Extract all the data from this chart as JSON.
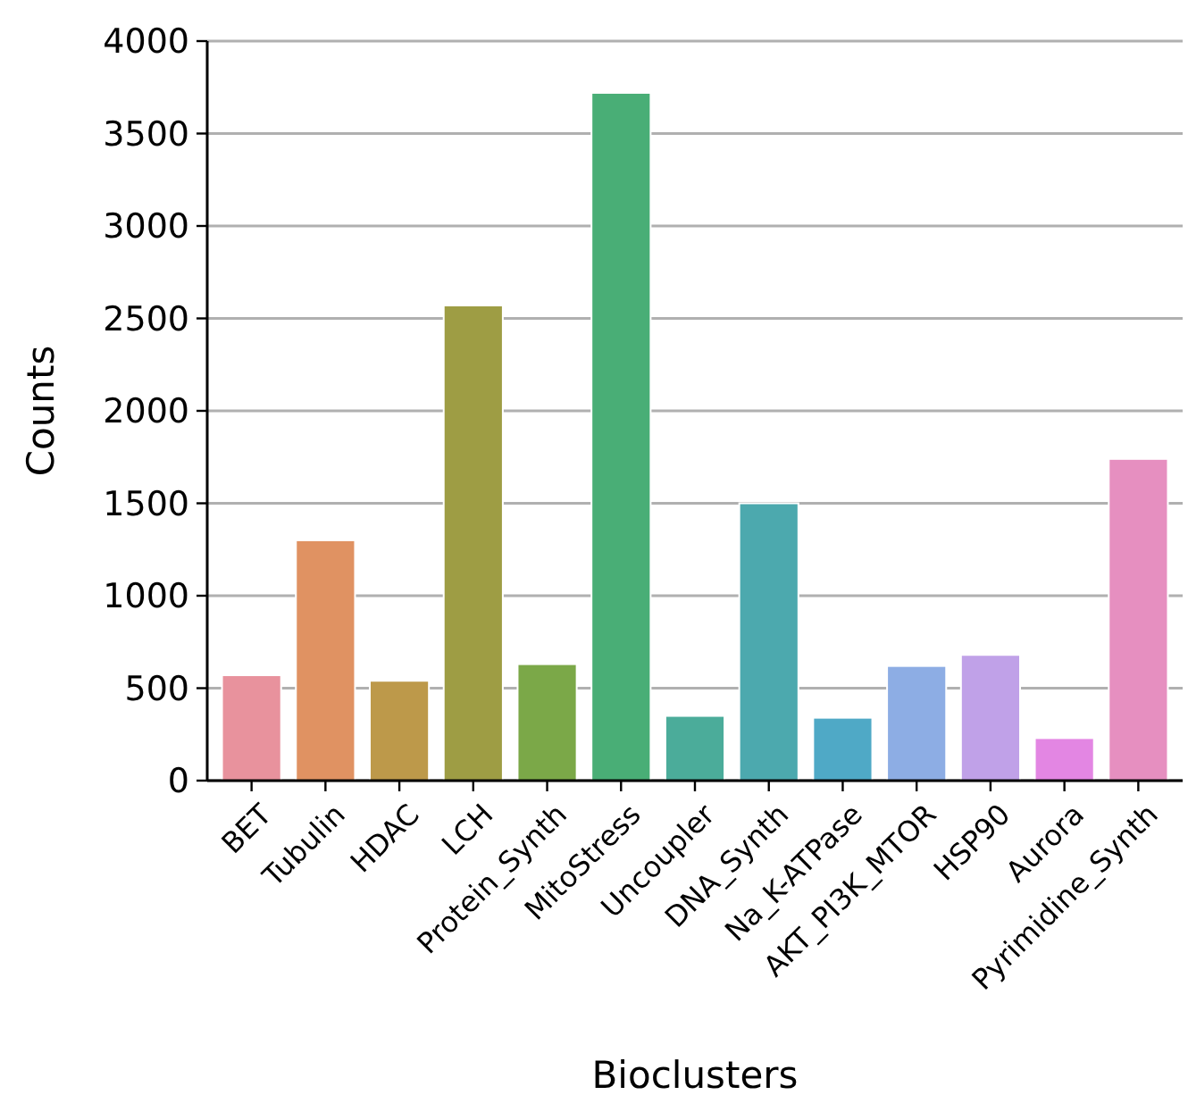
{
  "chart_data": {
    "type": "bar",
    "xlabel": "Bioclusters",
    "ylabel": "Counts",
    "categories": [
      "BET",
      "Tubulin",
      "HDAC",
      "LCH",
      "Protein_Synth",
      "MitoStress",
      "Uncoupler",
      "DNA_Synth",
      "Na_K-ATPase",
      "AKT_PI3K_MTOR",
      "HSP90",
      "Aurora",
      "Pyrimidine_Synth"
    ],
    "values": [
      570,
      1300,
      540,
      2570,
      630,
      3720,
      350,
      1500,
      340,
      620,
      680,
      230,
      1740
    ],
    "colors": [
      "#e8929d",
      "#e09262",
      "#bd994a",
      "#9e9d44",
      "#7ba848",
      "#49ae76",
      "#4bac9a",
      "#4ca9ae",
      "#4fa9c6",
      "#8dade4",
      "#c0a1e8",
      "#e386e3",
      "#e68fc0"
    ],
    "ylim": [
      0,
      4000
    ],
    "yticks": [
      0,
      500,
      1000,
      1500,
      2000,
      2500,
      3000,
      3500,
      4000
    ],
    "grid": "y"
  }
}
